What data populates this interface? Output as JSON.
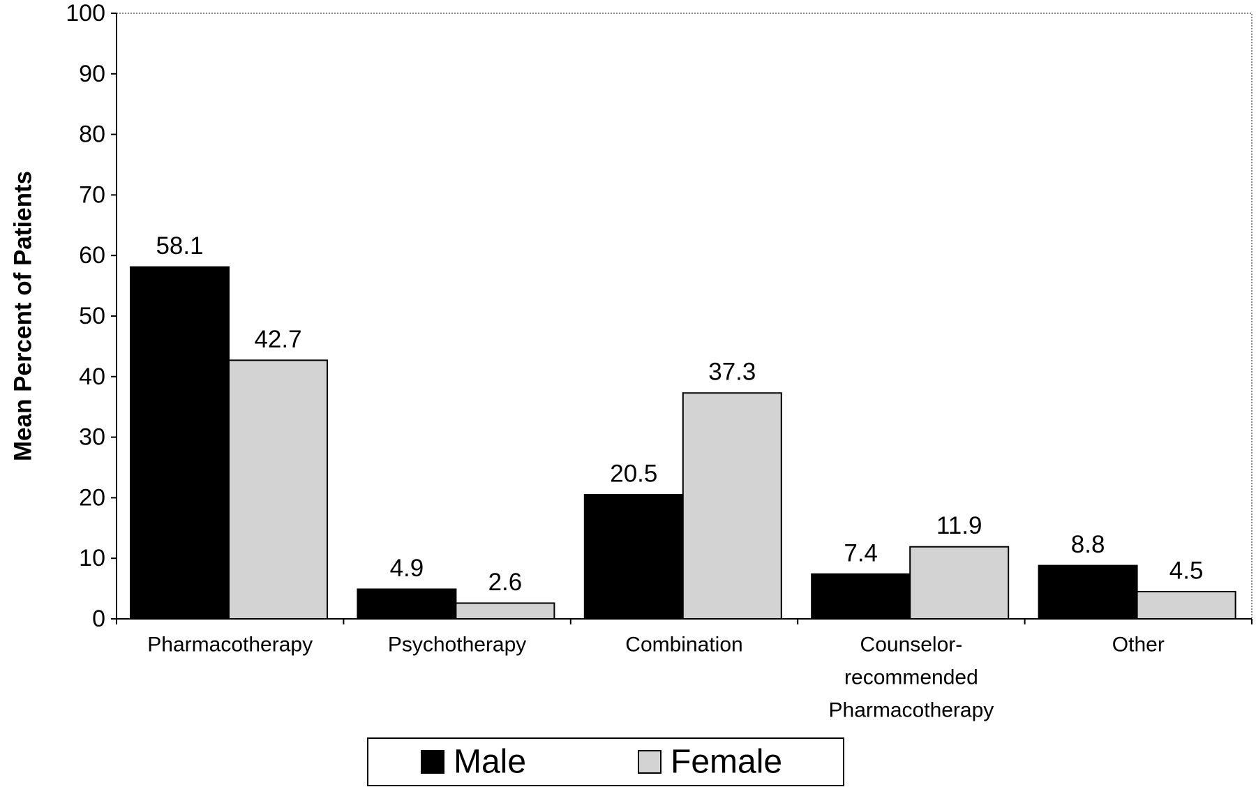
{
  "chart_data": {
    "type": "bar",
    "ylabel": "Mean Percent of Patients",
    "xlabel": "",
    "ylim": [
      0,
      100
    ],
    "yticks": [
      0,
      10,
      20,
      30,
      40,
      50,
      60,
      70,
      80,
      90,
      100
    ],
    "grid": false,
    "legend_position": "bottom-center",
    "categories": [
      [
        "Pharmacotherapy"
      ],
      [
        "Psychotherapy"
      ],
      [
        "Combination"
      ],
      [
        "Counselor-",
        "recommended",
        "Pharmacotherapy"
      ],
      [
        "Other"
      ]
    ],
    "series": [
      {
        "name": "Male",
        "color": "#000000",
        "values": [
          58.1,
          4.9,
          20.5,
          7.4,
          8.8
        ],
        "labels": [
          "58.1",
          "4.9",
          "20.5",
          "7.4",
          "8.8"
        ]
      },
      {
        "name": "Female",
        "color": "#d3d3d3",
        "values": [
          42.7,
          2.6,
          37.3,
          11.9,
          4.5
        ],
        "labels": [
          "42.7",
          "2.6",
          "37.3",
          "11.9",
          "4.5"
        ]
      }
    ]
  }
}
